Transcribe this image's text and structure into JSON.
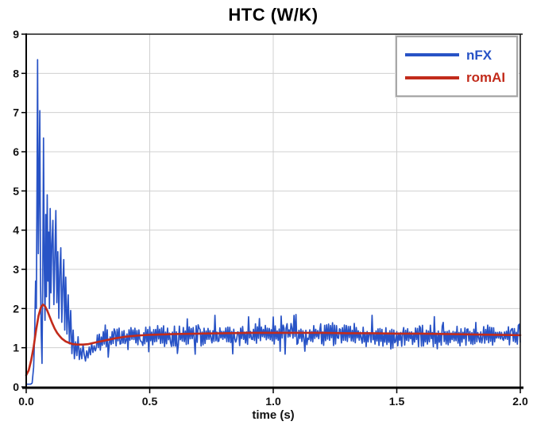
{
  "chart_data": {
    "type": "line",
    "title": "HTC (W/K)",
    "xlabel": "time (s)",
    "ylabel": "",
    "xlim": [
      0,
      2.0
    ],
    "ylim": [
      0,
      9
    ],
    "grid": true,
    "x_ticks": [
      {
        "value": 0.0,
        "label": "0.0"
      },
      {
        "value": 0.5,
        "label": "0.5"
      },
      {
        "value": 1.0,
        "label": "1.0"
      },
      {
        "value": 1.5,
        "label": "1.5"
      },
      {
        "value": 2.0,
        "label": "2.0"
      }
    ],
    "y_ticks": [
      {
        "value": 0,
        "label": "0"
      },
      {
        "value": 1,
        "label": "1"
      },
      {
        "value": 2,
        "label": "2"
      },
      {
        "value": 3,
        "label": "3"
      },
      {
        "value": 4,
        "label": "4"
      },
      {
        "value": 5,
        "label": "5"
      },
      {
        "value": 6,
        "label": "6"
      },
      {
        "value": 7,
        "label": "7"
      },
      {
        "value": 8,
        "label": "8"
      },
      {
        "value": 9,
        "label": "9"
      }
    ],
    "legend": {
      "position": "top-right",
      "entries": [
        {
          "label": "nFX",
          "color": "#2853c6"
        },
        {
          "label": "romAI",
          "color": "#c22b1b"
        }
      ]
    },
    "colors": {
      "grid": "#d0d0d0",
      "frame": "#1a1a1a",
      "background": "#ffffff"
    },
    "series": [
      {
        "name": "nFX",
        "color": "#2853c6",
        "style": "noisy-line",
        "transient_points": [
          [
            0.0,
            0.07
          ],
          [
            0.018,
            0.07
          ],
          [
            0.024,
            0.1
          ],
          [
            0.03,
            0.5
          ],
          [
            0.034,
            1.3
          ],
          [
            0.038,
            2.7
          ],
          [
            0.041,
            2.0
          ],
          [
            0.044,
            5.5
          ],
          [
            0.046,
            8.35
          ],
          [
            0.049,
            3.4
          ],
          [
            0.052,
            5.2
          ],
          [
            0.055,
            7.05
          ],
          [
            0.058,
            2.6
          ],
          [
            0.061,
            1.3
          ],
          [
            0.064,
            0.6
          ],
          [
            0.067,
            2.9
          ],
          [
            0.07,
            6.35
          ],
          [
            0.073,
            3.2
          ],
          [
            0.076,
            1.7
          ],
          [
            0.079,
            4.4
          ],
          [
            0.082,
            2.3
          ],
          [
            0.085,
            4.9
          ],
          [
            0.088,
            2.7
          ],
          [
            0.091,
            3.95
          ],
          [
            0.094,
            2.0
          ],
          [
            0.097,
            4.55
          ],
          [
            0.1,
            2.4
          ],
          [
            0.104,
            3.65
          ],
          [
            0.108,
            4.25
          ],
          [
            0.112,
            2.1
          ],
          [
            0.116,
            3.35
          ],
          [
            0.12,
            4.5
          ],
          [
            0.124,
            2.15
          ],
          [
            0.128,
            3.45
          ],
          [
            0.132,
            1.75
          ],
          [
            0.136,
            2.95
          ],
          [
            0.14,
            3.55
          ],
          [
            0.144,
            1.65
          ],
          [
            0.148,
            2.55
          ],
          [
            0.152,
            3.25
          ],
          [
            0.156,
            1.45
          ],
          [
            0.16,
            2.8
          ],
          [
            0.165,
            1.35
          ],
          [
            0.17,
            2.35
          ],
          [
            0.175,
            1.1
          ],
          [
            0.18,
            1.95
          ],
          [
            0.185,
            0.85
          ],
          [
            0.19,
            1.45
          ],
          [
            0.195,
            0.72
          ],
          [
            0.2,
            1.15
          ],
          [
            0.205,
            0.8
          ],
          [
            0.21,
            1.28
          ],
          [
            0.215,
            0.7
          ],
          [
            0.22,
            0.98
          ],
          [
            0.225,
            0.72
          ],
          [
            0.23,
            1.08
          ],
          [
            0.235,
            0.82
          ],
          [
            0.24,
            0.66
          ],
          [
            0.245,
            0.92
          ],
          [
            0.25,
            0.74
          ],
          [
            0.255,
            1.02
          ],
          [
            0.26,
            0.82
          ],
          [
            0.265,
            1.12
          ],
          [
            0.27,
            0.88
          ],
          [
            0.275,
            1.05
          ],
          [
            0.28,
            0.92
          ]
        ],
        "noise": {
          "t_start": 0.28,
          "t_end": 2.0,
          "dt": 0.004,
          "seed": 7,
          "amplitude": 0.28,
          "burst_probability": 0.1,
          "burst_scale": 1.9,
          "min_value": 0.55,
          "baseline": [
            [
              0.28,
              1.1
            ],
            [
              0.4,
              1.28
            ],
            [
              0.5,
              1.32
            ],
            [
              1.0,
              1.33
            ],
            [
              1.5,
              1.32
            ],
            [
              2.0,
              1.3
            ]
          ]
        }
      },
      {
        "name": "romAI",
        "color": "#c22b1b",
        "style": "smooth-line",
        "points": [
          [
            0.0,
            0.3
          ],
          [
            0.01,
            0.42
          ],
          [
            0.02,
            0.68
          ],
          [
            0.03,
            1.02
          ],
          [
            0.04,
            1.45
          ],
          [
            0.05,
            1.82
          ],
          [
            0.06,
            2.04
          ],
          [
            0.068,
            2.1
          ],
          [
            0.076,
            2.06
          ],
          [
            0.085,
            1.95
          ],
          [
            0.095,
            1.79
          ],
          [
            0.105,
            1.63
          ],
          [
            0.115,
            1.49
          ],
          [
            0.125,
            1.38
          ],
          [
            0.135,
            1.3
          ],
          [
            0.145,
            1.23
          ],
          [
            0.16,
            1.16
          ],
          [
            0.175,
            1.12
          ],
          [
            0.19,
            1.09
          ],
          [
            0.21,
            1.08
          ],
          [
            0.23,
            1.08
          ],
          [
            0.25,
            1.09
          ],
          [
            0.27,
            1.12
          ],
          [
            0.3,
            1.16
          ],
          [
            0.33,
            1.2
          ],
          [
            0.36,
            1.24
          ],
          [
            0.4,
            1.28
          ],
          [
            0.45,
            1.31
          ],
          [
            0.5,
            1.33
          ],
          [
            0.6,
            1.35
          ],
          [
            0.7,
            1.36
          ],
          [
            0.8,
            1.37
          ],
          [
            0.9,
            1.38
          ],
          [
            1.0,
            1.38
          ],
          [
            1.1,
            1.38
          ],
          [
            1.2,
            1.38
          ],
          [
            1.3,
            1.37
          ],
          [
            1.4,
            1.37
          ],
          [
            1.5,
            1.36
          ],
          [
            1.6,
            1.36
          ],
          [
            1.7,
            1.35
          ],
          [
            1.8,
            1.34
          ],
          [
            1.9,
            1.33
          ],
          [
            2.0,
            1.32
          ]
        ]
      }
    ]
  }
}
